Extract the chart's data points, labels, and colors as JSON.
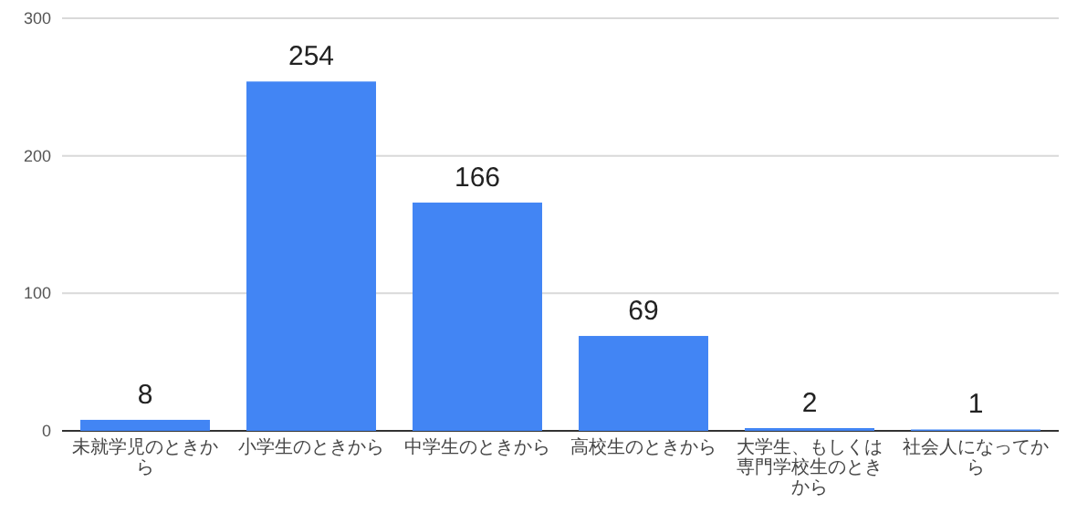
{
  "chart_data": {
    "type": "bar",
    "categories": [
      "未就学児のときから",
      "小学生のときから",
      "中学生のときから",
      "高校生のときから",
      "大学生、もしくは専門学校生のときから",
      "社会人になってから"
    ],
    "values": [
      8,
      254,
      166,
      69,
      2,
      1
    ],
    "color": "#4285f4",
    "ylim": [
      0,
      300
    ],
    "yticks": [
      0,
      100,
      200,
      300
    ],
    "grid": "y",
    "data_labels": true
  }
}
